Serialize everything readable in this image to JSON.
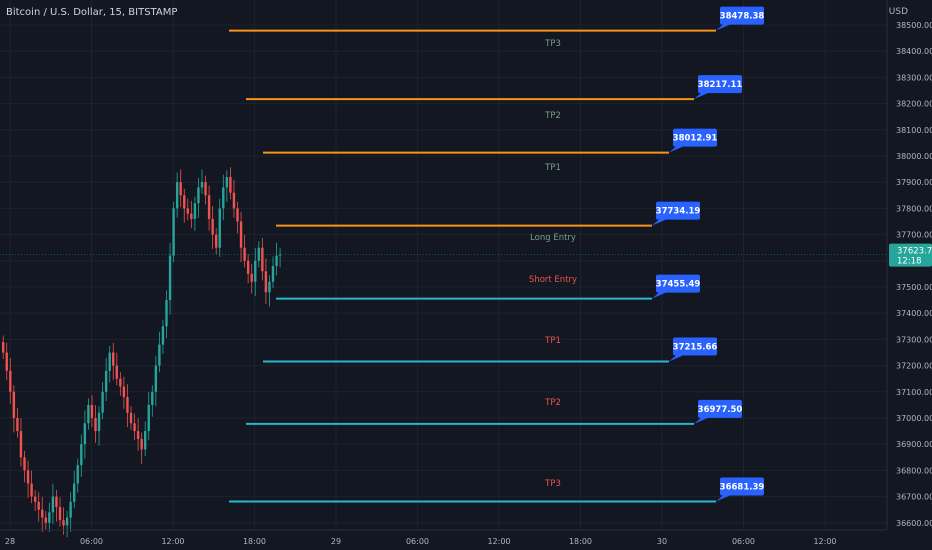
{
  "header": {
    "symbol_title": "Bitcoin / U.S. Dollar, 15, BITSTAMP",
    "currency": "USD"
  },
  "colors": {
    "background": "#131722",
    "grid": "#1e222d",
    "axis_text": "#b2b5be",
    "bull_candle": "#26a69a",
    "bear_candle": "#ef5350",
    "long_line": "#f7931a",
    "short_line": "#2ab7c9",
    "long_label": "#7f9b8d",
    "short_label": "#ef5350",
    "price_tag": "#2962ff",
    "last_price_tag": "#26a69a"
  },
  "price_axis": {
    "ticks": [
      "38500.00",
      "38400.00",
      "38300.00",
      "38200.00",
      "38100.00",
      "38000.00",
      "37900.00",
      "37800.00",
      "37700.00",
      "37600.00",
      "37500.00",
      "37400.00",
      "37300.00",
      "37200.00",
      "37100.00",
      "37000.00",
      "36900.00",
      "36800.00",
      "36700.00",
      "36600.00"
    ],
    "current_price": "37623.71",
    "countdown": "12:18"
  },
  "time_axis": {
    "ticks": [
      "28",
      "06:00",
      "12:00",
      "18:00",
      "29",
      "06:00",
      "12:00",
      "18:00",
      "30",
      "06:00",
      "12:00"
    ]
  },
  "chart_data": {
    "type": "candlestick",
    "title": "Bitcoin / U.S. Dollar, 15, BITSTAMP",
    "ylabel": "USD",
    "ylim": [
      36580,
      38560
    ],
    "current_price": 37623.71,
    "levels": [
      {
        "label": "TP3",
        "side": "long",
        "price": 38478.38,
        "price_label": "38478.38"
      },
      {
        "label": "TP2",
        "side": "long",
        "price": 38217.11,
        "price_label": "38217.11"
      },
      {
        "label": "TP1",
        "side": "long",
        "price": 38012.91,
        "price_label": "38012.91"
      },
      {
        "label": "Long Entry",
        "side": "long",
        "price": 37734.19,
        "price_label": "37734.19"
      },
      {
        "label": "Short Entry",
        "side": "short",
        "price": 37455.49,
        "price_label": "37455.49"
      },
      {
        "label": "TP1",
        "side": "short",
        "price": 37215.66,
        "price_label": "37215.66"
      },
      {
        "label": "TP2",
        "side": "short",
        "price": 36977.5,
        "price_label": "36977.50"
      },
      {
        "label": "TP3",
        "side": "short",
        "price": 36681.39,
        "price_label": "36681.39"
      }
    ],
    "closes": [
      37250,
      37180,
      37100,
      37000,
      36950,
      36850,
      36800,
      36750,
      36700,
      36680,
      36650,
      36620,
      36600,
      36640,
      36700,
      36660,
      36610,
      36590,
      36620,
      36680,
      36750,
      36820,
      36900,
      36980,
      37050,
      37000,
      36950,
      37020,
      37100,
      37180,
      37250,
      37200,
      37150,
      37120,
      37080,
      37020,
      36980,
      36950,
      36920,
      36880,
      36950,
      37050,
      37100,
      37200,
      37280,
      37350,
      37450,
      37620,
      37800,
      37900,
      37850,
      37800,
      37780,
      37760,
      37820,
      37880,
      37900,
      37850,
      37760,
      37700,
      37650,
      37800,
      37880,
      37920,
      37860,
      37800,
      37750,
      37650,
      37600,
      37550,
      37520,
      37600,
      37650,
      37560,
      37480,
      37520,
      37580,
      37620,
      37623.71
    ]
  }
}
